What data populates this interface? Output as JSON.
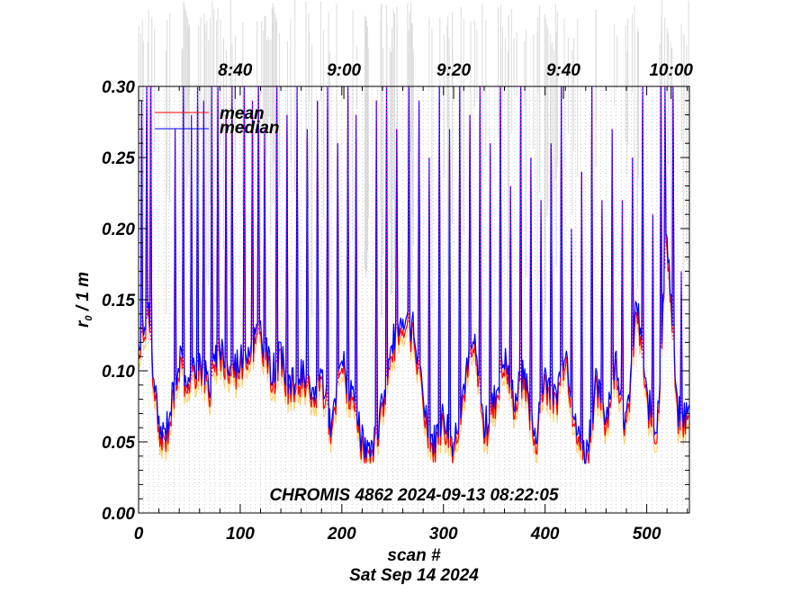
{
  "chart_data": {
    "type": "line",
    "xlabel": "scan #",
    "date_label": "Sat Sep 14 2024",
    "ylabel_main": "r",
    "ylabel_sub": "0",
    "ylabel_rest": " / 1 m",
    "annotation": "CHROMIS 4862 2024-09-13 08:22:05",
    "xlim": [
      0,
      542
    ],
    "ylim": [
      0,
      0.3
    ],
    "x_ticks": [
      0,
      100,
      200,
      300,
      400,
      500
    ],
    "x_tick_labels": [
      "0",
      "100",
      "200",
      "300",
      "400",
      "500"
    ],
    "y_ticks": [
      0.0,
      0.05,
      0.1,
      0.15,
      0.2,
      0.25,
      0.3
    ],
    "y_tick_labels": [
      "0.00",
      "0.05",
      "0.10",
      "0.15",
      "0.20",
      "0.25",
      "0.30"
    ],
    "time_ticks": [
      {
        "label": "8:40",
        "scan": 95
      },
      {
        "label": "9:00",
        "scan": 202
      },
      {
        "label": "9:20",
        "scan": 310
      },
      {
        "label": "9:40",
        "scan": 418
      },
      {
        "label": "10:00",
        "scan": 524
      }
    ],
    "legend": [
      {
        "name": "mean",
        "color": "#ff0000"
      },
      {
        "name": "median",
        "color": "#0000ff"
      }
    ],
    "series": [
      {
        "name": "median",
        "color": "#0000ff",
        "anchors": [
          [
            0,
            0.12
          ],
          [
            5,
            0.13
          ],
          [
            10,
            0.14
          ],
          [
            15,
            0.09
          ],
          [
            20,
            0.06
          ],
          [
            25,
            0.055
          ],
          [
            30,
            0.07
          ],
          [
            40,
            0.11
          ],
          [
            50,
            0.09
          ],
          [
            60,
            0.11
          ],
          [
            70,
            0.09
          ],
          [
            80,
            0.12
          ],
          [
            90,
            0.1
          ],
          [
            100,
            0.11
          ],
          [
            110,
            0.12
          ],
          [
            120,
            0.13
          ],
          [
            130,
            0.1
          ],
          [
            140,
            0.11
          ],
          [
            150,
            0.09
          ],
          [
            160,
            0.1
          ],
          [
            170,
            0.08
          ],
          [
            180,
            0.1
          ],
          [
            190,
            0.06
          ],
          [
            200,
            0.11
          ],
          [
            210,
            0.08
          ],
          [
            220,
            0.05
          ],
          [
            230,
            0.04
          ],
          [
            240,
            0.08
          ],
          [
            250,
            0.12
          ],
          [
            260,
            0.14
          ],
          [
            270,
            0.13
          ],
          [
            280,
            0.08
          ],
          [
            290,
            0.05
          ],
          [
            300,
            0.07
          ],
          [
            310,
            0.05
          ],
          [
            320,
            0.09
          ],
          [
            330,
            0.12
          ],
          [
            340,
            0.06
          ],
          [
            350,
            0.08
          ],
          [
            360,
            0.11
          ],
          [
            370,
            0.08
          ],
          [
            380,
            0.1
          ],
          [
            390,
            0.05
          ],
          [
            400,
            0.1
          ],
          [
            410,
            0.08
          ],
          [
            420,
            0.12
          ],
          [
            430,
            0.06
          ],
          [
            440,
            0.04
          ],
          [
            450,
            0.09
          ],
          [
            460,
            0.07
          ],
          [
            470,
            0.11
          ],
          [
            480,
            0.06
          ],
          [
            490,
            0.15
          ],
          [
            500,
            0.08
          ],
          [
            510,
            0.06
          ],
          [
            520,
            0.2
          ],
          [
            530,
            0.07
          ],
          [
            542,
            0.07
          ]
        ],
        "spikes": [
          [
            3,
            0.29
          ],
          [
            8,
            0.3
          ],
          [
            12,
            0.3
          ],
          [
            36,
            0.27
          ],
          [
            44,
            0.3
          ],
          [
            52,
            0.28
          ],
          [
            58,
            0.3
          ],
          [
            64,
            0.29
          ],
          [
            72,
            0.3
          ],
          [
            78,
            0.3
          ],
          [
            86,
            0.28
          ],
          [
            92,
            0.3
          ],
          [
            104,
            0.3
          ],
          [
            112,
            0.29
          ],
          [
            118,
            0.3
          ],
          [
            124,
            0.27
          ],
          [
            136,
            0.3
          ],
          [
            146,
            0.28
          ],
          [
            156,
            0.3
          ],
          [
            166,
            0.27
          ],
          [
            176,
            0.29
          ],
          [
            186,
            0.3
          ],
          [
            196,
            0.26
          ],
          [
            206,
            0.3
          ],
          [
            214,
            0.28
          ],
          [
            234,
            0.29
          ],
          [
            244,
            0.3
          ],
          [
            254,
            0.27
          ],
          [
            266,
            0.3
          ],
          [
            276,
            0.29
          ],
          [
            286,
            0.25
          ],
          [
            296,
            0.3
          ],
          [
            306,
            0.27
          ],
          [
            316,
            0.3
          ],
          [
            326,
            0.28
          ],
          [
            336,
            0.3
          ],
          [
            346,
            0.26
          ],
          [
            356,
            0.3
          ],
          [
            366,
            0.23
          ],
          [
            376,
            0.3
          ],
          [
            386,
            0.25
          ],
          [
            396,
            0.22
          ],
          [
            406,
            0.26
          ],
          [
            416,
            0.3
          ],
          [
            426,
            0.2
          ],
          [
            436,
            0.24
          ],
          [
            446,
            0.3
          ],
          [
            456,
            0.22
          ],
          [
            466,
            0.27
          ],
          [
            476,
            0.22
          ],
          [
            486,
            0.25
          ],
          [
            496,
            0.3
          ],
          [
            506,
            0.21
          ],
          [
            514,
            0.3
          ],
          [
            518,
            0.3
          ],
          [
            526,
            0.3
          ],
          [
            534,
            0.17
          ]
        ]
      },
      {
        "name": "mean",
        "color": "#ff0000",
        "note": "tracks median closely, slightly lower"
      }
    ]
  }
}
